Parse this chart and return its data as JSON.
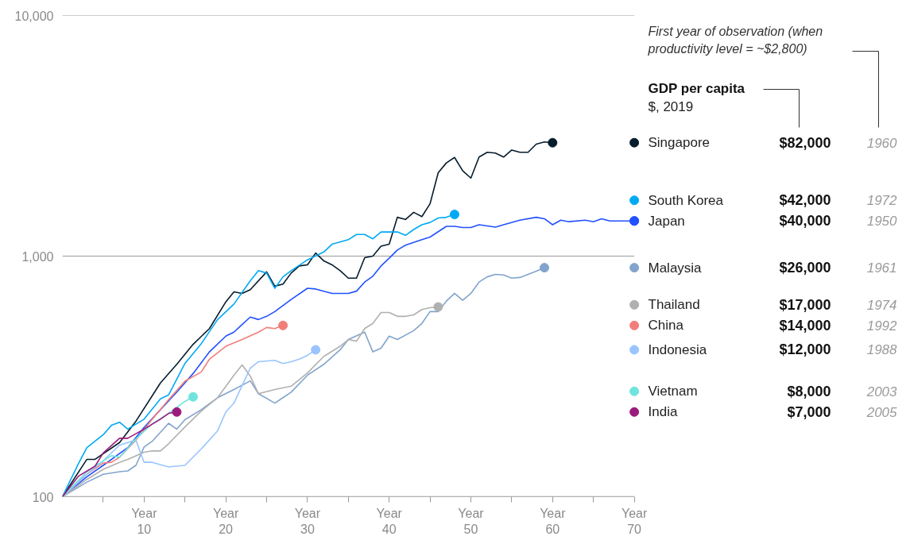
{
  "chart_data": {
    "type": "line",
    "xlim": [
      0,
      70
    ],
    "ylim": [
      100,
      10000
    ],
    "log": "y",
    "grid": "y",
    "xlabel": "Year",
    "legend": "right",
    "xticks": [
      {
        "value": 5,
        "label": null
      },
      10,
      {
        "value": 15,
        "label": null
      },
      20,
      {
        "value": 25,
        "label": null
      },
      30,
      {
        "value": 35,
        "label": null
      },
      40,
      {
        "value": 45,
        "label": null
      },
      50,
      {
        "value": 55,
        "label": null
      },
      60,
      {
        "value": 65,
        "label": null
      },
      70
    ],
    "yticks": [
      100,
      {
        "value": 1000,
        "label": "1,000"
      },
      {
        "value": 10000,
        "label": "10,000"
      }
    ],
    "series": [
      {
        "name": "Singapore",
        "color": "#051c2c",
        "x": [
          0,
          3,
          4,
          7,
          9,
          12,
          14,
          16,
          18,
          20,
          21,
          22,
          23,
          25,
          26,
          27,
          28,
          29,
          30,
          31,
          32,
          33,
          34,
          35,
          36,
          37,
          38,
          39,
          40,
          41,
          42,
          43,
          44,
          45,
          46,
          47,
          48,
          49,
          50,
          51,
          52,
          53,
          54,
          55,
          56,
          57,
          58,
          59,
          60
        ],
        "values": [
          100,
          143,
          143,
          168,
          206,
          297,
          355,
          430,
          500,
          645,
          710,
          700,
          725,
          860,
          750,
          765,
          850,
          910,
          920,
          1030,
          955,
          920,
          870,
          810,
          810,
          985,
          1000,
          1100,
          1120,
          1450,
          1420,
          1520,
          1460,
          1650,
          2220,
          2440,
          2570,
          2260,
          2110,
          2580,
          2700,
          2680,
          2580,
          2760,
          2700,
          2700,
          2920,
          2980,
          2960
        ]
      },
      {
        "name": "South Korea",
        "color": "#00a9f4",
        "x": [
          0,
          2,
          3,
          5,
          6,
          7,
          8,
          10,
          12,
          13,
          15,
          17,
          19,
          21,
          23,
          24,
          25,
          26,
          27,
          28,
          30,
          32,
          33,
          35,
          36,
          37,
          38,
          39,
          41,
          42,
          43,
          44,
          45,
          46,
          47,
          48
        ],
        "values": [
          100,
          138,
          160,
          181,
          198,
          204,
          191,
          210,
          255,
          265,
          358,
          433,
          545,
          632,
          790,
          870,
          850,
          735,
          820,
          870,
          965,
          1040,
          1120,
          1170,
          1230,
          1230,
          1180,
          1260,
          1260,
          1220,
          1290,
          1350,
          1380,
          1440,
          1450,
          1490
        ]
      },
      {
        "name": "Japan",
        "color": "#2251ff",
        "x": [
          0,
          3,
          5,
          8,
          10,
          12,
          14,
          16,
          18,
          20,
          21,
          22,
          23,
          24,
          25,
          26,
          28,
          30,
          31,
          33,
          34,
          35,
          36,
          37,
          38,
          39,
          40,
          41,
          42,
          44,
          45,
          47,
          48,
          49,
          50,
          51,
          53,
          54,
          56,
          58,
          59,
          60,
          61,
          62,
          64,
          65,
          66,
          67,
          70
        ],
        "values": [
          100,
          121,
          135,
          160,
          194,
          230,
          272,
          325,
          400,
          465,
          483,
          520,
          558,
          545,
          562,
          588,
          660,
          735,
          730,
          700,
          700,
          700,
          715,
          780,
          825,
          910,
          980,
          1060,
          1110,
          1170,
          1200,
          1330,
          1330,
          1315,
          1315,
          1350,
          1320,
          1350,
          1410,
          1450,
          1430,
          1350,
          1410,
          1390,
          1410,
          1390,
          1430,
          1400,
          1400
        ]
      },
      {
        "name": "Malaysia",
        "color": "#82a4cc",
        "x": [
          0,
          3,
          5,
          7,
          8,
          9,
          10,
          11,
          13,
          14,
          15,
          17,
          19,
          21,
          23,
          24,
          26,
          27,
          28,
          30,
          32,
          34,
          35,
          37,
          38,
          39,
          40,
          41,
          43,
          44,
          45,
          46,
          47,
          48,
          49,
          50,
          51,
          52,
          53,
          54,
          55,
          56,
          58,
          59
        ],
        "values": [
          100,
          115,
          124,
          127,
          128,
          135,
          161,
          170,
          202,
          191,
          209,
          230,
          258,
          279,
          303,
          268,
          245,
          258,
          272,
          320,
          355,
          408,
          450,
          483,
          400,
          414,
          465,
          450,
          490,
          525,
          588,
          588,
          650,
          700,
          655,
          700,
          780,
          820,
          840,
          835,
          810,
          815,
          865,
          895
        ]
      },
      {
        "name": "Thailand",
        "color": "#b0b0b0",
        "x": [
          0,
          3,
          5,
          7,
          8,
          10,
          11,
          12,
          13,
          15,
          17,
          19,
          21,
          22,
          23,
          24,
          26,
          28,
          30,
          32,
          34,
          35,
          36,
          37,
          38,
          39,
          40,
          41,
          42,
          43,
          44,
          45,
          46
        ],
        "values": [
          100,
          118,
          130,
          139,
          143,
          153,
          155,
          155,
          166,
          195,
          227,
          258,
          320,
          353,
          317,
          268,
          279,
          288,
          327,
          383,
          422,
          450,
          443,
          500,
          525,
          583,
          583,
          562,
          562,
          570,
          600,
          610,
          615
        ]
      },
      {
        "name": "China",
        "color": "#f17e7a",
        "x": [
          0,
          3,
          5,
          6,
          7,
          9,
          11,
          13,
          15,
          17,
          18,
          20,
          22,
          24,
          25,
          26,
          27
        ],
        "values": [
          100,
          124,
          138,
          139,
          146,
          172,
          210,
          253,
          302,
          330,
          373,
          422,
          450,
          483,
          505,
          500,
          515
        ]
      },
      {
        "name": "Indonesia",
        "color": "#99c4ff",
        "x": [
          0,
          3,
          5,
          7,
          9,
          10,
          11,
          13,
          14,
          15,
          17,
          19,
          20,
          21,
          22,
          23,
          24,
          26,
          27,
          28,
          29,
          30,
          31
        ],
        "values": [
          100,
          124,
          141,
          164,
          172,
          139,
          139,
          133,
          134,
          135,
          158,
          188,
          225,
          245,
          290,
          342,
          364,
          369,
          358,
          364,
          373,
          387,
          408
        ]
      },
      {
        "name": "Vietnam",
        "color": "#6fe4dc",
        "x": [
          0,
          3,
          5,
          6,
          7,
          9,
          11,
          13,
          15,
          16
        ],
        "values": [
          100,
          127,
          141,
          148,
          146,
          174,
          201,
          222,
          249,
          260
        ]
      },
      {
        "name": "India",
        "color": "#9b1b7d",
        "x": [
          0,
          2,
          4,
          5,
          7,
          8,
          10,
          12,
          13,
          14
        ],
        "values": [
          100,
          122,
          134,
          152,
          175,
          175,
          191,
          210,
          222,
          225
        ]
      }
    ],
    "annotations": [
      "First year of observation (when productivity level = ~$2,800)",
      "GDP per capita",
      "$, 2019",
      "$82,000",
      "1960",
      "$42,000",
      "1972",
      "$40,000",
      "1950",
      "$26,000",
      "1961",
      "$17,000",
      "1974",
      "$14,000",
      "1992",
      "$12,000",
      "1988",
      "$8,000",
      "2003",
      "$7,000",
      "2005"
    ]
  }
}
